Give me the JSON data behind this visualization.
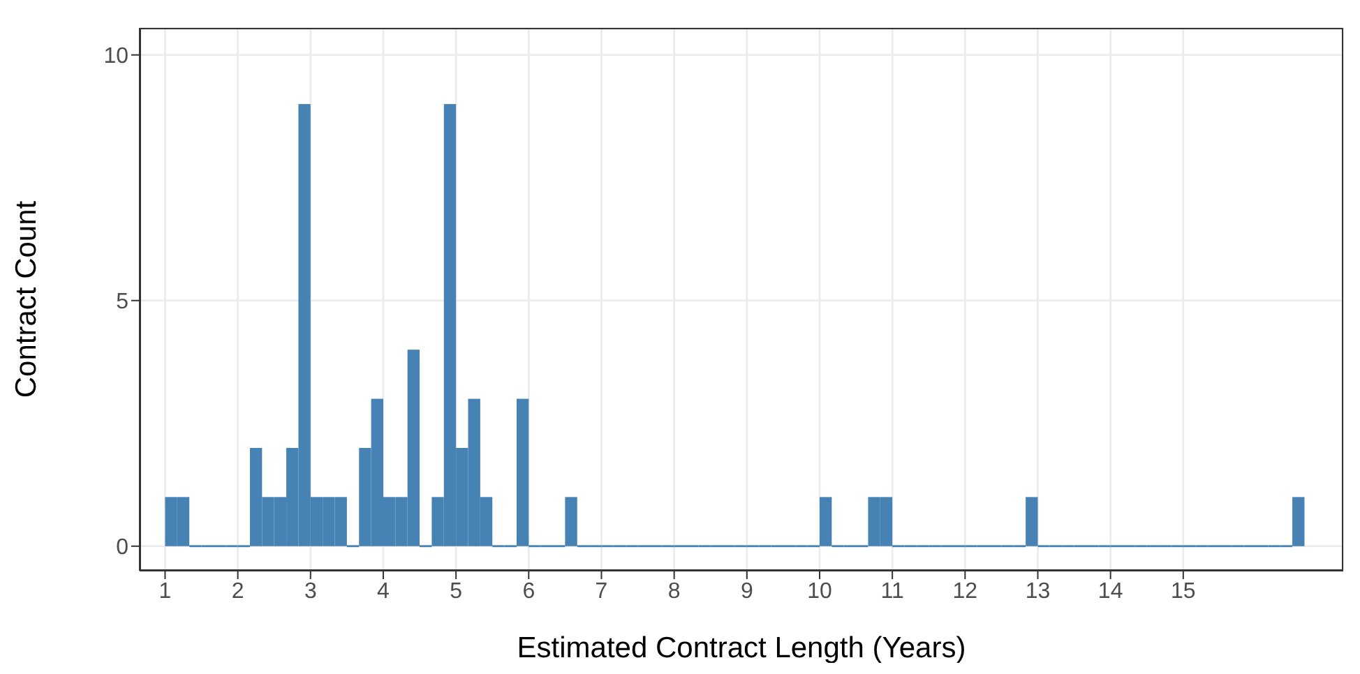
{
  "chart_data": {
    "type": "histogram",
    "xlabel": "Estimated Contract Length (Years)",
    "ylabel": "Contract Count",
    "color": "#4682b4",
    "bins": [
      1,
      1.1667,
      1.3333,
      1.5,
      1.6667,
      1.8333,
      2,
      2.1667,
      2.3333,
      2.5,
      2.6667,
      2.8333,
      3,
      3.1667,
      3.3333,
      3.5,
      3.6667,
      3.8333,
      4,
      4.1667,
      4.3333,
      4.5,
      4.6667,
      4.8333,
      5,
      5.1667,
      5.3333,
      5.5,
      5.6667,
      5.8333,
      6,
      6.1667,
      6.3333,
      6.5,
      6.6667,
      6.8333,
      7,
      7.1667,
      7.3333,
      7.5,
      7.6667,
      7.8333,
      8,
      8.1667,
      8.3333,
      8.5,
      8.6667,
      8.8333,
      9,
      9.1667,
      9.3333,
      9.5,
      9.6667,
      9.8333,
      10,
      10.1667,
      10.3333,
      10.5,
      10.6667,
      10.8333,
      11,
      11.1667,
      11.3333,
      11.5,
      11.6667,
      11.8333,
      12,
      12.1667,
      12.3333,
      12.5,
      12.6667,
      12.8333,
      13,
      13.1667,
      13.3333,
      13.5,
      13.6667,
      13.8333,
      14,
      14.1667,
      14.3333,
      14.5,
      14.6667,
      14.8333,
      15,
      15.1667,
      15.3333,
      15.5,
      15.6667,
      15.8333,
      16,
      16.1667,
      16.3333,
      16.5,
      16.6667
    ],
    "values": [
      1,
      1,
      0,
      0,
      0,
      0,
      0,
      2,
      1,
      1,
      2,
      9,
      1,
      1,
      1,
      0,
      2,
      3,
      1,
      1,
      4,
      0,
      1,
      9,
      2,
      3,
      1,
      0,
      0,
      3,
      0,
      0,
      0,
      1,
      0,
      0,
      0,
      0,
      0,
      0,
      0,
      0,
      0,
      0,
      0,
      0,
      0,
      0,
      0,
      0,
      0,
      0,
      0,
      0,
      1,
      0,
      0,
      0,
      1,
      1,
      0,
      0,
      0,
      0,
      0,
      0,
      0,
      0,
      0,
      0,
      0,
      1,
      0,
      0,
      0,
      0,
      0,
      0,
      0,
      0,
      0,
      0,
      0,
      0,
      0,
      0,
      0,
      0,
      0,
      0,
      0,
      0,
      0,
      1
    ],
    "xlim": [
      0.65,
      17.2
    ],
    "xticks": [
      1,
      2,
      3,
      4,
      5,
      6,
      7,
      8,
      9,
      10,
      11,
      12,
      13,
      14,
      15
    ],
    "ylim": [
      -0.5,
      10.55
    ],
    "yticks": [
      0,
      5,
      10
    ],
    "grid": true
  }
}
